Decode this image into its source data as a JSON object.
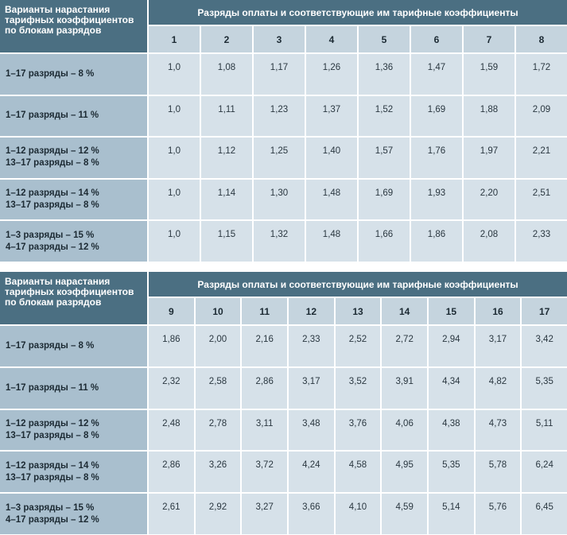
{
  "tables": [
    {
      "corner": "Варианты нарастания\nтарифных коэффициентов\nпо блокам разрядов",
      "group_header": "Разряды оплаты и соответствующие им тарифные коэффициенты",
      "grades": [
        "1",
        "2",
        "3",
        "4",
        "5",
        "6",
        "7",
        "8"
      ],
      "rows": [
        {
          "label": "1–17 разряды – 8 %",
          "values": [
            "1,0",
            "1,08",
            "1,17",
            "1,26",
            "1,36",
            "1,47",
            "1,59",
            "1,72"
          ]
        },
        {
          "label": "1–17 разряды – 11 %",
          "values": [
            "1,0",
            "1,11",
            "1,23",
            "1,37",
            "1,52",
            "1,69",
            "1,88",
            "2,09"
          ]
        },
        {
          "label": "1–12 разряды – 12 %\n13–17 разряды – 8 %",
          "values": [
            "1,0",
            "1,12",
            "1,25",
            "1,40",
            "1,57",
            "1,76",
            "1,97",
            "2,21"
          ]
        },
        {
          "label": "1–12 разряды – 14 %\n13–17 разряды – 8 %",
          "values": [
            "1,0",
            "1,14",
            "1,30",
            "1,48",
            "1,69",
            "1,93",
            "2,20",
            "2,51"
          ]
        },
        {
          "label": "1–3 разряды – 15 %\n4–17 разряды – 12 %",
          "values": [
            "1,0",
            "1,15",
            "1,32",
            "1,48",
            "1,66",
            "1,86",
            "2,08",
            "2,33"
          ]
        }
      ]
    },
    {
      "corner": "Варианты нарастания\nтарифных коэффициентов\nпо блокам разрядов",
      "group_header": "Разряды оплаты и соответствующие им тарифные коэффициенты",
      "grades": [
        "9",
        "10",
        "11",
        "12",
        "13",
        "14",
        "15",
        "16",
        "17"
      ],
      "rows": [
        {
          "label": "1–17 разряды – 8 %",
          "values": [
            "1,86",
            "2,00",
            "2,16",
            "2,33",
            "2,52",
            "2,72",
            "2,94",
            "3,17",
            "3,42"
          ]
        },
        {
          "label": "1–17 разряды – 11 %",
          "values": [
            "2,32",
            "2,58",
            "2,86",
            "3,17",
            "3,52",
            "3,91",
            "4,34",
            "4,82",
            "5,35"
          ]
        },
        {
          "label": "1–12 разряды – 12 %\n13–17 разряды – 8 %",
          "values": [
            "2,48",
            "2,78",
            "3,11",
            "3,48",
            "3,76",
            "4,06",
            "4,38",
            "4,73",
            "5,11"
          ]
        },
        {
          "label": "1–12 разряды – 14 %\n13–17 разряды – 8 %",
          "values": [
            "2,86",
            "3,26",
            "3,72",
            "4,24",
            "4,58",
            "4,95",
            "5,35",
            "5,78",
            "6,24"
          ]
        },
        {
          "label": "1–3 разряды – 15 %\n4–17 разряды – 12 %",
          "values": [
            "2,61",
            "2,92",
            "3,27",
            "3,66",
            "4,10",
            "4,59",
            "5,14",
            "5,76",
            "6,45"
          ]
        }
      ]
    }
  ]
}
